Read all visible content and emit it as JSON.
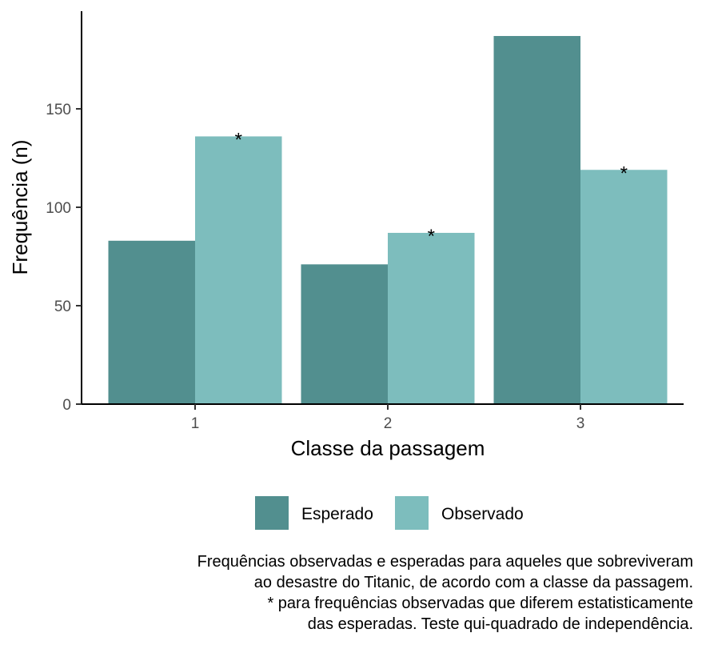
{
  "chart_data": {
    "type": "bar",
    "title": "",
    "xlabel": "Classe da passagem",
    "ylabel": "Frequência (n)",
    "categories": [
      "1",
      "2",
      "3"
    ],
    "ylim": [
      0,
      190
    ],
    "yticks": [
      0,
      50,
      100,
      150
    ],
    "series": [
      {
        "name": "Esperado",
        "color": "#528f8f",
        "values": [
          83,
          71,
          187
        ]
      },
      {
        "name": "Observado",
        "color": "#7dbdbd",
        "values": [
          136,
          87,
          119
        ]
      }
    ],
    "annotations": [
      {
        "series": "Observado",
        "category": "1",
        "text": "*"
      },
      {
        "series": "Observado",
        "category": "2",
        "text": "*"
      },
      {
        "series": "Observado",
        "category": "3",
        "text": "*"
      }
    ],
    "legend": {
      "position": "bottom",
      "items": [
        "Esperado",
        "Observado"
      ]
    },
    "caption": [
      "Frequências observadas e esperadas para aqueles que sobreviveram",
      "ao desastre do Titanic, de acordo com a classe da passagem.",
      "* para frequências observadas que diferem estatisticamente",
      "das esperadas. Teste qui-quadrado de independência."
    ]
  }
}
